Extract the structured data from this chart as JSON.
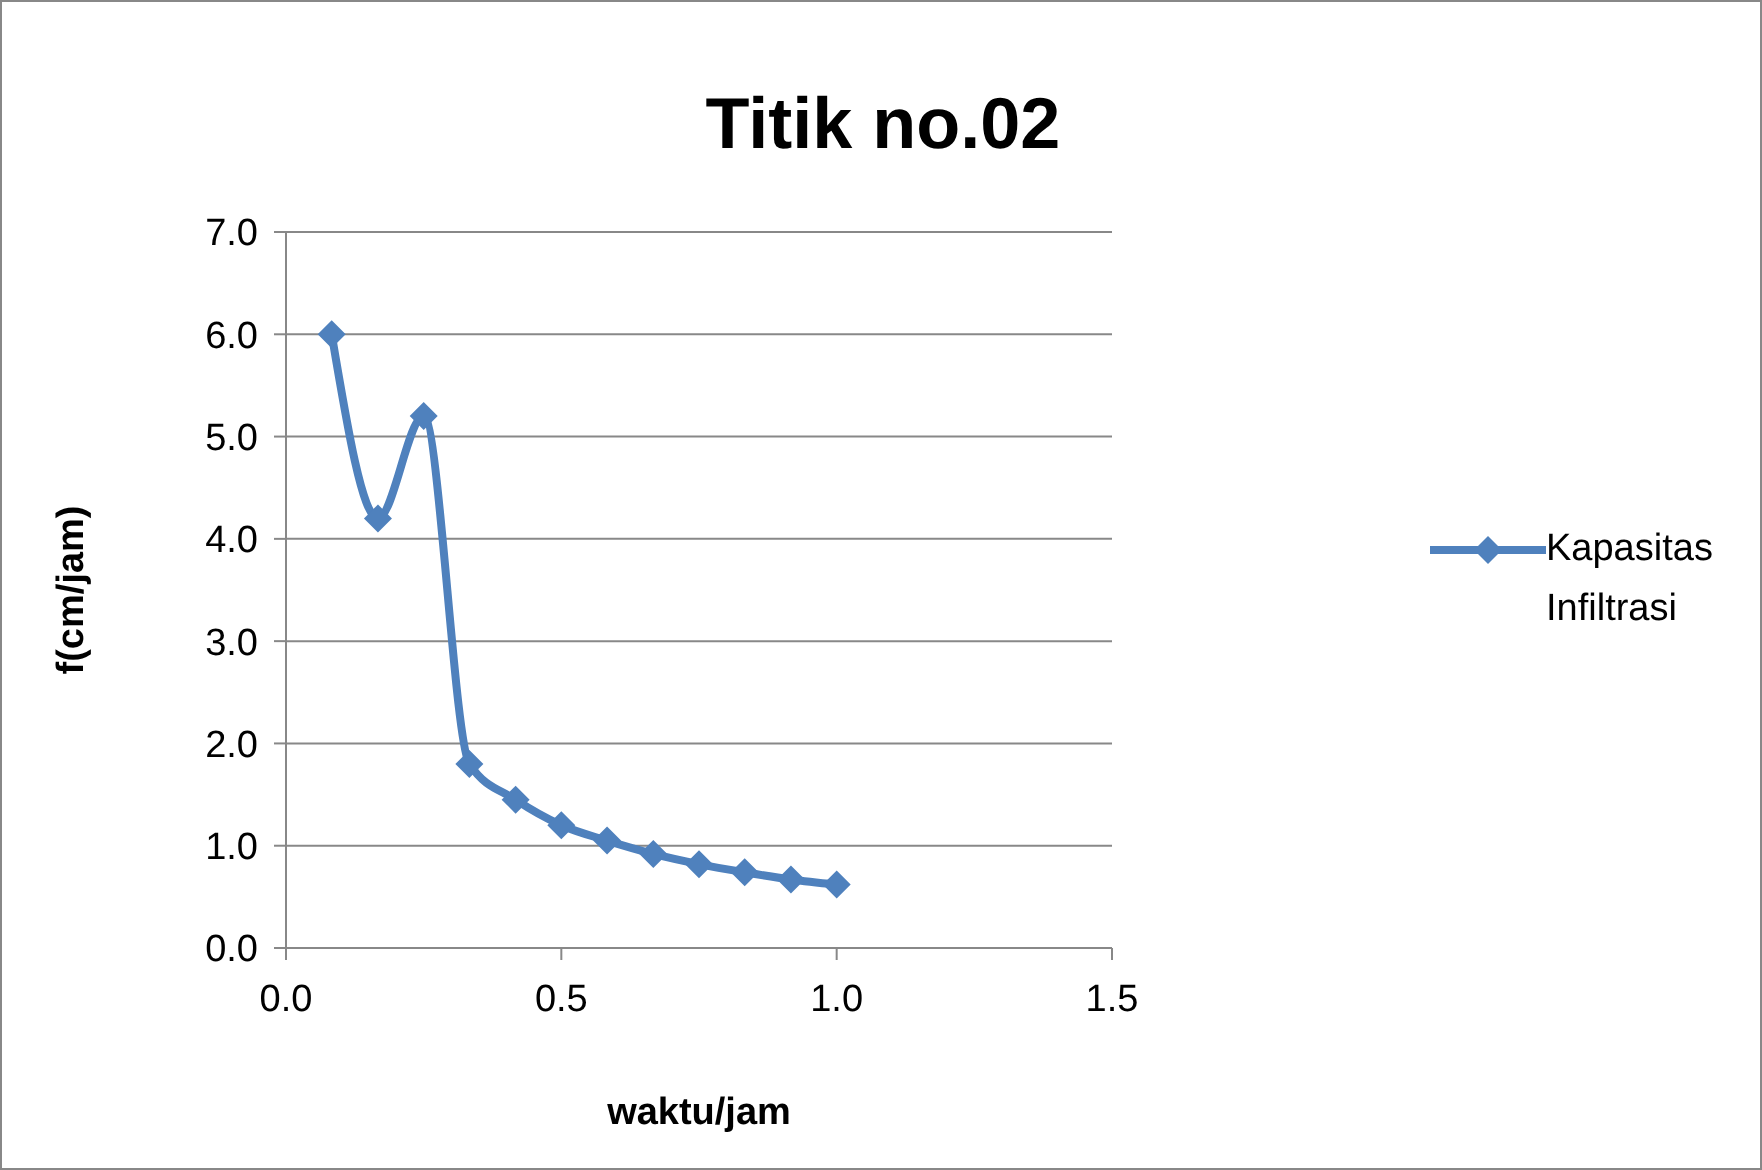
{
  "chart_data": {
    "type": "line",
    "title": "Titik no.02",
    "xlabel": "waktu/jam",
    "ylabel": "f(cm/jam)",
    "x": [
      0.083,
      0.167,
      0.25,
      0.333,
      0.417,
      0.5,
      0.583,
      0.667,
      0.75,
      0.833,
      0.917,
      1.0
    ],
    "series": [
      {
        "name": "Kapasitas Infiltrasi",
        "color": "#4f81bd",
        "values": [
          6.0,
          4.2,
          5.2,
          1.8,
          1.45,
          1.2,
          1.05,
          0.92,
          0.82,
          0.74,
          0.67,
          0.62
        ]
      }
    ],
    "xlim": [
      0,
      1.5
    ],
    "xticks": [
      {
        "value": 0,
        "label": "0.0"
      },
      0.5,
      {
        "value": 1,
        "label": "1.0"
      },
      1.5
    ],
    "ylim": [
      0,
      7
    ],
    "yticks": [
      {
        "value": 0,
        "label": "0.0"
      },
      {
        "value": 1,
        "label": "1.0"
      },
      {
        "value": 2,
        "label": "2.0"
      },
      {
        "value": 3,
        "label": "3.0"
      },
      {
        "value": 4,
        "label": "4.0"
      },
      {
        "value": 5,
        "label": "5.0"
      },
      {
        "value": 6,
        "label": "6.0"
      },
      {
        "value": 7,
        "label": "7.0"
      }
    ],
    "grid": "y",
    "legend": "right",
    "marker": "diamond",
    "line_style": "solid"
  }
}
